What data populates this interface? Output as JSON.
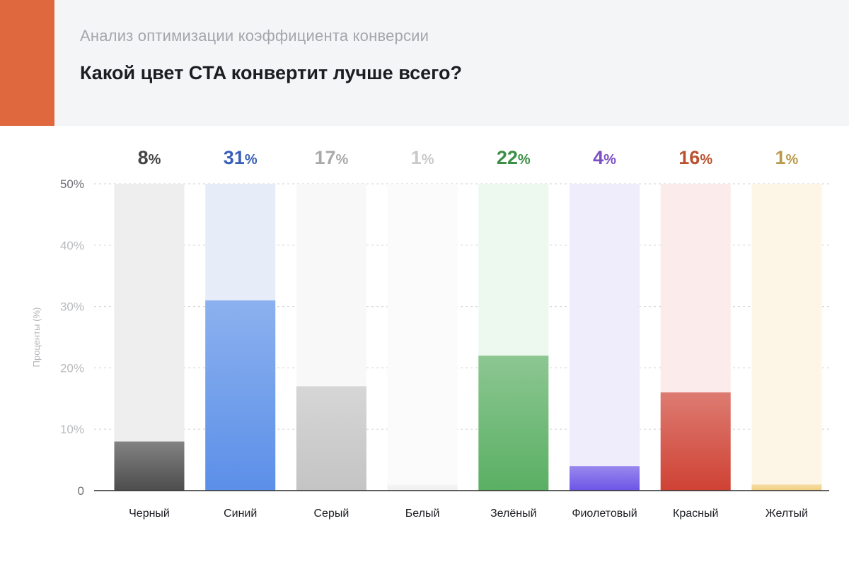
{
  "header": {
    "accent_color": "#e0683f",
    "subtitle": "Анализ оптимизации коэффициента конверсии",
    "title": "Какой цвет CTA конвертит лучше всего?"
  },
  "chart_data": {
    "type": "bar",
    "ylabel": "Проценты (%)",
    "ylim": [
      0,
      50
    ],
    "yticks": [
      0,
      10,
      20,
      30,
      40,
      50
    ],
    "ytick_labels": [
      "0",
      "10%",
      "20%",
      "30%",
      "40%",
      "50%"
    ],
    "grid": true,
    "categories": [
      "Черный",
      "Синий",
      "Серый",
      "Белый",
      "Зелёный",
      "Фиолетовый",
      "Красный",
      "Желтый"
    ],
    "values": [
      8,
      31,
      17,
      1,
      22,
      4,
      16,
      1
    ],
    "value_labels": [
      "8",
      "31",
      "17",
      "1",
      "22",
      "4",
      "16",
      "1"
    ],
    "value_suffix": "%",
    "colors": [
      "#4d4d4d",
      "#5b8fe8",
      "#c4c4c4",
      "#f0f0f0",
      "#5aaf63",
      "#6d55e6",
      "#cf4234",
      "#f0cf7e"
    ],
    "label_colors": [
      "#454545",
      "#3a5fb8",
      "#a9a9a9",
      "#c9c9c9",
      "#3a8f45",
      "#7c4fc5",
      "#b95230",
      "#b89a4a"
    ],
    "track_colors": [
      "#eeeeee",
      "#e6ecf8",
      "#f8f8f8",
      "#fbfbfb",
      "#edf8ee",
      "#efecfc",
      "#fbeceb",
      "#fdf6e6"
    ]
  }
}
